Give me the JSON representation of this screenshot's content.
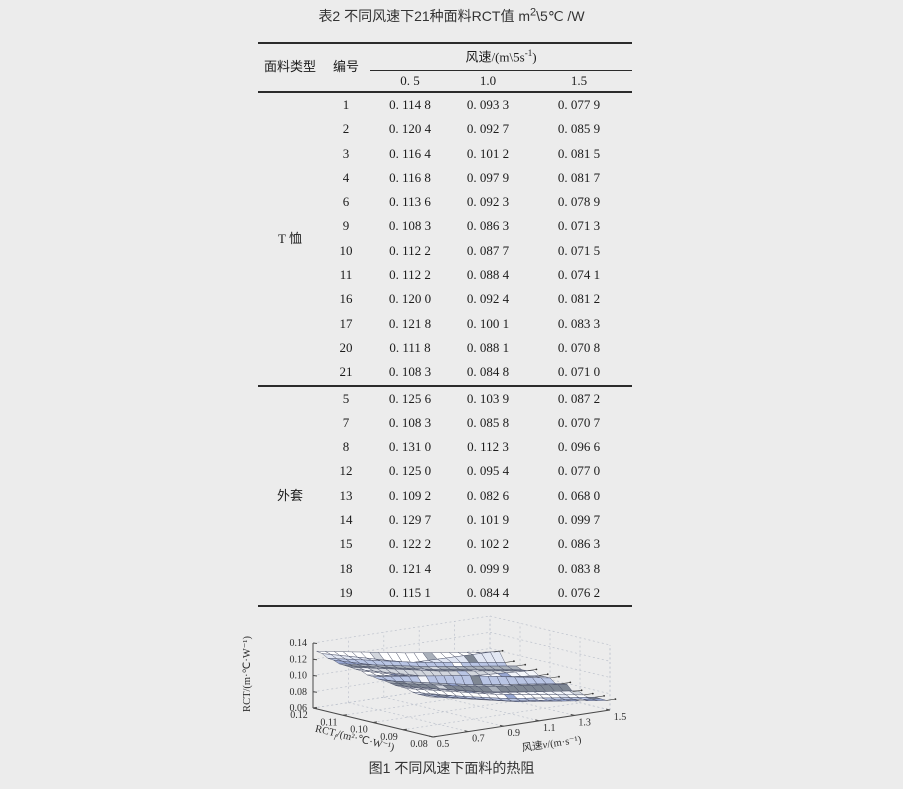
{
  "page": {
    "background": "#ececec"
  },
  "title": {
    "pre": "表2 不同风速下21种面料RCT值 m",
    "sup": "2",
    "post": "\\5℃ /W"
  },
  "table": {
    "headers": {
      "type": "面料类型",
      "id": "编号",
      "speed_pre": "风速/(m\\5s",
      "speed_sup": "-1",
      "speed_post": ")",
      "speeds": [
        "0. 5",
        "1.0",
        "1.5"
      ]
    },
    "groups": [
      {
        "type": "T 恤",
        "rows": [
          {
            "id": "1",
            "values": [
              "0. 114 8",
              "0. 093 3",
              "0. 077 9"
            ]
          },
          {
            "id": "2",
            "values": [
              "0. 120 4",
              "0. 092 7",
              "0. 085 9"
            ]
          },
          {
            "id": "3",
            "values": [
              "0. 116 4",
              "0. 101 2",
              "0. 081 5"
            ]
          },
          {
            "id": "4",
            "values": [
              "0. 116 8",
              "0. 097 9",
              "0. 081 7"
            ]
          },
          {
            "id": "6",
            "values": [
              "0. 113 6",
              "0. 092 3",
              "0. 078 9"
            ]
          },
          {
            "id": "9",
            "values": [
              "0. 108 3",
              "0. 086 3",
              "0. 071 3"
            ]
          },
          {
            "id": "10",
            "values": [
              "0. 112 2",
              "0. 087 7",
              "0. 071 5"
            ]
          },
          {
            "id": "11",
            "values": [
              "0. 112 2",
              "0. 088 4",
              "0. 074 1"
            ]
          },
          {
            "id": "16",
            "values": [
              "0. 120 0",
              "0. 092 4",
              "0. 081 2"
            ]
          },
          {
            "id": "17",
            "values": [
              "0. 121 8",
              "0. 100 1",
              "0. 083 3"
            ]
          },
          {
            "id": "20",
            "values": [
              "0. 111 8",
              "0. 088 1",
              "0. 070 8"
            ]
          },
          {
            "id": "21",
            "values": [
              "0. 108 3",
              "0. 084 8",
              "0. 071 0"
            ]
          }
        ]
      },
      {
        "type": "外套",
        "rows": [
          {
            "id": "5",
            "values": [
              "0. 125 6",
              "0. 103 9",
              "0. 087 2"
            ]
          },
          {
            "id": "7",
            "values": [
              "0. 108 3",
              "0. 085 8",
              "0. 070 7"
            ]
          },
          {
            "id": "8",
            "values": [
              "0. 131 0",
              "0. 112 3",
              "0. 096 6"
            ]
          },
          {
            "id": "12",
            "values": [
              "0. 125 0",
              "0. 095 4",
              "0. 077 0"
            ]
          },
          {
            "id": "13",
            "values": [
              "0. 109 2",
              "0. 082 6",
              "0. 068 0"
            ]
          },
          {
            "id": "14",
            "values": [
              "0. 129 7",
              "0. 101 9",
              "0. 099 7"
            ]
          },
          {
            "id": "15",
            "values": [
              "0. 122 2",
              "0. 102 2",
              "0. 086 3"
            ]
          },
          {
            "id": "18",
            "values": [
              "0. 121 4",
              "0. 099 9",
              "0. 083 8"
            ]
          },
          {
            "id": "19",
            "values": [
              "0. 115 1",
              "0. 084 4",
              "0. 076 2"
            ]
          }
        ]
      }
    ]
  },
  "figure": {
    "caption": "图1 不同风速下面料的热阻"
  },
  "chart_data": {
    "type": "surface",
    "title": "图1 不同风速下面料的热阻",
    "zlabel": "RCT/(m·℃·W⁻¹)",
    "xlabel": {
      "main": "RCT",
      "sub": "f",
      "rest": "/(m²·℃·W⁻¹)"
    },
    "ylabel_pre": "风速",
    "ylabel_var": "v",
    "ylabel_post": "/(m·s⁻¹)",
    "x_ticks": [
      "0.12",
      "0.11",
      "0.10",
      "0.09",
      "0.08"
    ],
    "y_ticks": [
      "0.5",
      "0.7",
      "0.9",
      "1.1",
      "1.3",
      "1.5"
    ],
    "z_ticks": [
      "0.06",
      "0.08",
      "0.10",
      "0.12",
      "0.14"
    ],
    "x_range": [
      0.12,
      0.08
    ],
    "y_range": [
      0.5,
      1.5
    ],
    "z_range": [
      0.06,
      0.14
    ],
    "grid": "dashed",
    "legend": "none",
    "wind_speeds": [
      0.5,
      1.0,
      1.5
    ],
    "surface_colors": [
      "#ffffff",
      "#e2e7f3",
      "#b9c5e4",
      "#98a7d2",
      "#a9b0ba",
      "#7f8793",
      "#d2d6dd",
      "#f3f5fa"
    ],
    "series": [
      {
        "group": "T恤",
        "id": 1,
        "rct": [
          0.1148,
          0.0933,
          0.0779
        ]
      },
      {
        "group": "T恤",
        "id": 2,
        "rct": [
          0.1204,
          0.0927,
          0.0859
        ]
      },
      {
        "group": "T恤",
        "id": 3,
        "rct": [
          0.1164,
          0.1012,
          0.0815
        ]
      },
      {
        "group": "T恤",
        "id": 4,
        "rct": [
          0.1168,
          0.0979,
          0.0817
        ]
      },
      {
        "group": "T恤",
        "id": 6,
        "rct": [
          0.1136,
          0.0923,
          0.0789
        ]
      },
      {
        "group": "T恤",
        "id": 9,
        "rct": [
          0.1083,
          0.0863,
          0.0713
        ]
      },
      {
        "group": "T恤",
        "id": 10,
        "rct": [
          0.1122,
          0.0877,
          0.0715
        ]
      },
      {
        "group": "T恤",
        "id": 11,
        "rct": [
          0.1122,
          0.0884,
          0.0741
        ]
      },
      {
        "group": "T恤",
        "id": 16,
        "rct": [
          0.12,
          0.0924,
          0.0812
        ]
      },
      {
        "group": "T恤",
        "id": 17,
        "rct": [
          0.1218,
          0.1001,
          0.0833
        ]
      },
      {
        "group": "T恤",
        "id": 20,
        "rct": [
          0.1118,
          0.0881,
          0.0708
        ]
      },
      {
        "group": "T恤",
        "id": 21,
        "rct": [
          0.1083,
          0.0848,
          0.071
        ]
      },
      {
        "group": "外套",
        "id": 5,
        "rct": [
          0.1256,
          0.1039,
          0.0872
        ]
      },
      {
        "group": "外套",
        "id": 7,
        "rct": [
          0.1083,
          0.0858,
          0.0707
        ]
      },
      {
        "group": "外套",
        "id": 8,
        "rct": [
          0.131,
          0.1123,
          0.0966
        ]
      },
      {
        "group": "外套",
        "id": 12,
        "rct": [
          0.125,
          0.0954,
          0.077
        ]
      },
      {
        "group": "外套",
        "id": 13,
        "rct": [
          0.1092,
          0.0826,
          0.068
        ]
      },
      {
        "group": "外套",
        "id": 14,
        "rct": [
          0.1297,
          0.1019,
          0.0997
        ]
      },
      {
        "group": "外套",
        "id": 15,
        "rct": [
          0.1222,
          0.1022,
          0.0863
        ]
      },
      {
        "group": "外套",
        "id": 18,
        "rct": [
          0.1214,
          0.0999,
          0.0838
        ]
      },
      {
        "group": "外套",
        "id": 19,
        "rct": [
          0.1151,
          0.0844,
          0.0762
        ]
      }
    ]
  }
}
